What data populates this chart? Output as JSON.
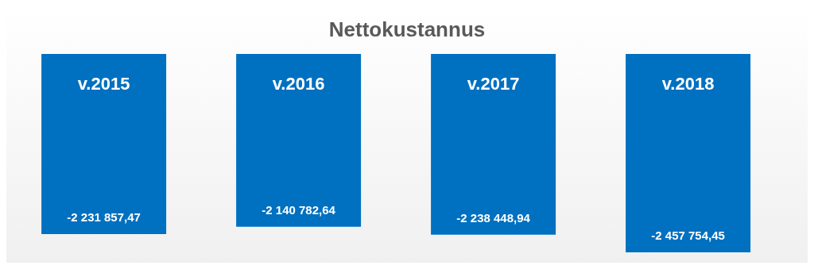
{
  "chart_data": {
    "type": "bar",
    "title": "Nettokustannus",
    "categories": [
      "v.2015",
      "v.2016",
      "v.2017",
      "v.2018"
    ],
    "values": [
      -2231857.47,
      -2140782.64,
      -2238448.94,
      -2457754.45
    ],
    "value_labels": [
      "-2 231 857,47",
      "-2 140 782,64",
      "-2 238 448,94",
      "-2 457 754,45"
    ],
    "color": "#0070c0"
  }
}
